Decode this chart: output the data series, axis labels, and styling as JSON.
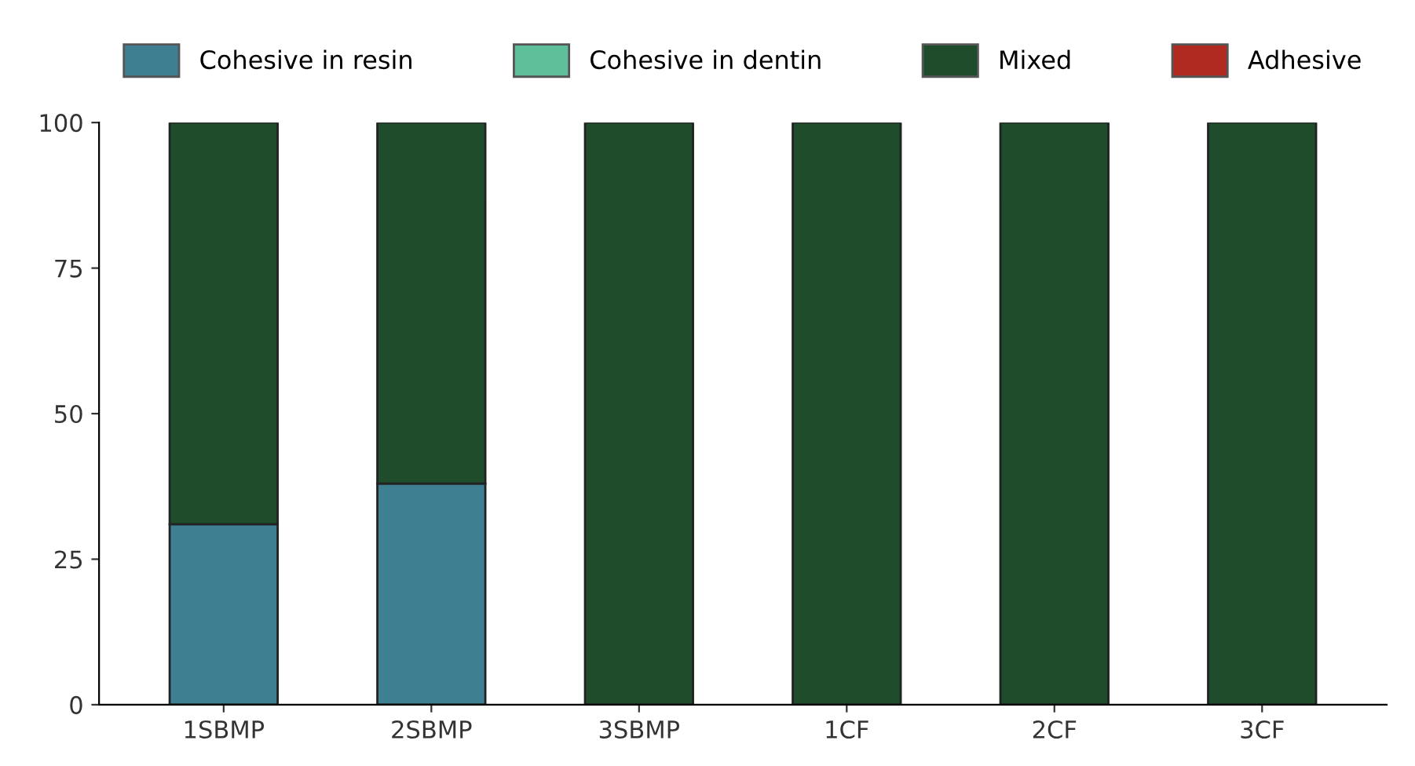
{
  "chart_data": {
    "type": "bar",
    "stacked": true,
    "categories": [
      "1SBMP",
      "2SBMP",
      "3SBMP",
      "1CF",
      "2CF",
      "3CF"
    ],
    "series": [
      {
        "name": "Cohesive in resin",
        "color": "#3e7f92",
        "values": [
          31,
          38,
          null,
          null,
          null,
          null
        ]
      },
      {
        "name": "Cohesive in dentin",
        "color": "#5fbf9a",
        "values": [
          null,
          null,
          null,
          null,
          null,
          null
        ]
      },
      {
        "name": "Mixed",
        "color": "#1f4d2c",
        "values": [
          69,
          62,
          100,
          100,
          100,
          100
        ]
      },
      {
        "name": "Adhesive",
        "color": "#b02a22",
        "values": [
          null,
          null,
          null,
          null,
          null,
          null
        ]
      }
    ],
    "ylim": [
      0,
      100
    ],
    "yticks": [
      0,
      25,
      50,
      75,
      100
    ],
    "grid": false,
    "legend": "top"
  }
}
